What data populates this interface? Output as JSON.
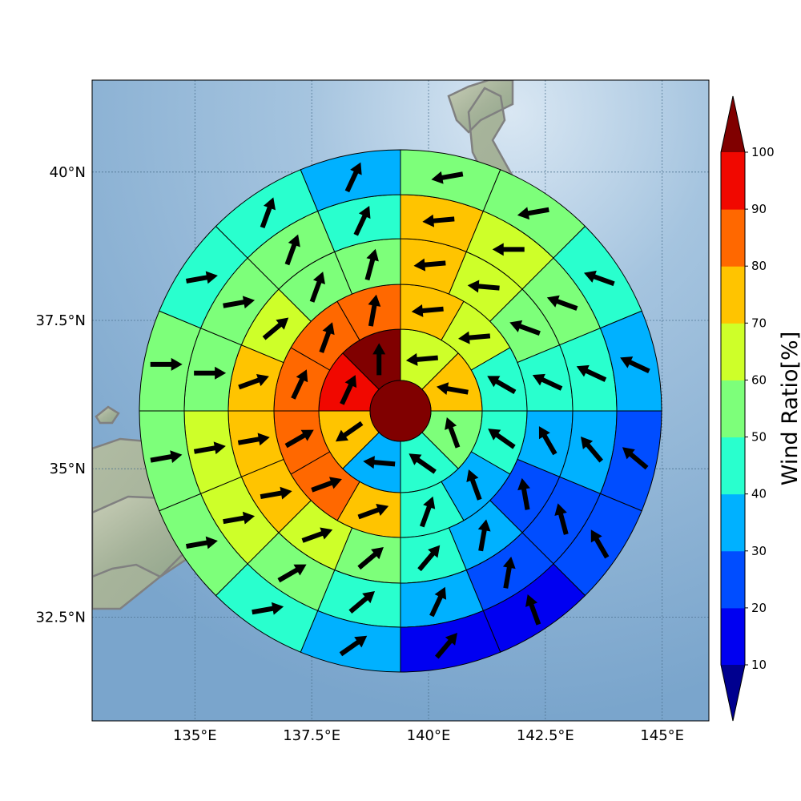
{
  "chart_data": {
    "type": "heatmap",
    "title": "",
    "map": {
      "lon_range": [
        132.8,
        146.0
      ],
      "lat_range": [
        30.75,
        41.55
      ],
      "grid": true,
      "coastline_color": "#808080"
    },
    "x_ticks": [
      {
        "value": 135.0,
        "label": "135°E"
      },
      {
        "value": 137.5,
        "label": "137.5°E"
      },
      {
        "value": 140.0,
        "label": "140°E"
      },
      {
        "value": 142.5,
        "label": "142.5°E"
      },
      {
        "value": 145.0,
        "label": "145°E"
      }
    ],
    "y_ticks": [
      {
        "value": 32.5,
        "label": "32.5°N"
      },
      {
        "value": 35.0,
        "label": "35°N"
      },
      {
        "value": 37.5,
        "label": "37.5°N"
      },
      {
        "value": 40.0,
        "label": "40°N"
      }
    ],
    "center_value": 100,
    "rings": [
      {
        "sector_deg": 45,
        "values": [
          65,
          70,
          55,
          45,
          35,
          75,
          90,
          100
        ],
        "arrows": [
          265,
          280,
          340,
          305,
          275,
          235,
          25,
          0
        ]
      },
      {
        "sector_deg": 30,
        "values": [
          75,
          65,
          45,
          45,
          35,
          45,
          75,
          80,
          80,
          85,
          80,
          80
        ],
        "arrows": [
          265,
          265,
          300,
          305,
          340,
          20,
          70,
          70,
          60,
          25,
          20,
          10
        ]
      },
      {
        "sector_deg": 22.5,
        "values": [
          75,
          65,
          55,
          45,
          35,
          25,
          35,
          45,
          55,
          65,
          75,
          75,
          75,
          65,
          55,
          55
        ],
        "arrows": [
          265,
          275,
          290,
          295,
          330,
          350,
          10,
          40,
          50,
          70,
          80,
          80,
          70,
          50,
          20,
          15
        ]
      },
      {
        "sector_deg": 22.5,
        "values": [
          75,
          65,
          55,
          45,
          35,
          25,
          25,
          35,
          45,
          55,
          65,
          65,
          55,
          55,
          55,
          45
        ],
        "arrows": [
          265,
          270,
          290,
          295,
          320,
          345,
          10,
          25,
          50,
          60,
          80,
          80,
          90,
          80,
          20,
          25
        ]
      },
      {
        "sector_deg": 22.5,
        "values": [
          55,
          55,
          45,
          35,
          25,
          25,
          15,
          15,
          35,
          45,
          55,
          55,
          55,
          45,
          45,
          35
        ],
        "arrows": [
          260,
          260,
          290,
          295,
          310,
          330,
          340,
          40,
          55,
          80,
          80,
          80,
          90,
          80,
          20,
          25
        ]
      },
      {
        "sector_deg": 22.5,
        "values": [
          55,
          45,
          45,
          35,
          25,
          15,
          15,
          15,
          25,
          35,
          55,
          55,
          55,
          35,
          35,
          35
        ],
        "arrows": [
          265,
          260,
          285,
          300,
          310,
          330,
          340,
          40,
          60,
          80,
          80,
          75,
          90,
          75,
          25,
          20
        ]
      }
    ],
    "colorbar": {
      "label": "Wind Ratio[%]",
      "ticks": [
        "10",
        "20",
        "30",
        "40",
        "50",
        "60",
        "70",
        "80",
        "90",
        "100"
      ],
      "under_color": "#00008f",
      "over_color": "#800000",
      "colors": [
        "#0000f1",
        "#004dff",
        "#00b1ff",
        "#29ffce",
        "#7dff7a",
        "#ceff29",
        "#ffc400",
        "#ff6800",
        "#f10800"
      ]
    }
  }
}
